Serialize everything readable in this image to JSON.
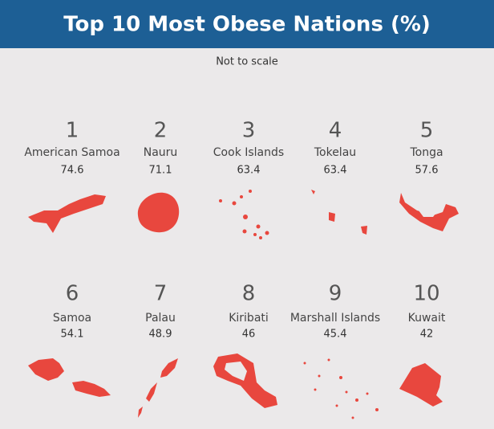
{
  "header": {
    "title": "Top 10 Most Obese Nations (%)",
    "subtitle": "Not to scale"
  },
  "items": [
    {
      "rank": 1,
      "name": "American Samoa",
      "value": 74.6
    },
    {
      "rank": 2,
      "name": "Nauru",
      "value": 71.1
    },
    {
      "rank": 3,
      "name": "Cook Islands",
      "value": 63.4
    },
    {
      "rank": 4,
      "name": "Tokelau",
      "value": 63.4
    },
    {
      "rank": 5,
      "name": "Tonga",
      "value": 57.6
    },
    {
      "rank": 6,
      "name": "Samoa",
      "value": 54.1
    },
    {
      "rank": 7,
      "name": "Palau",
      "value": 48.9
    },
    {
      "rank": 8,
      "name": "Kiribati",
      "value": 46
    },
    {
      "rank": 9,
      "name": "Marshall Islands",
      "value": 45.4
    },
    {
      "rank": 10,
      "name": "Kuwait",
      "value": 42
    }
  ]
}
